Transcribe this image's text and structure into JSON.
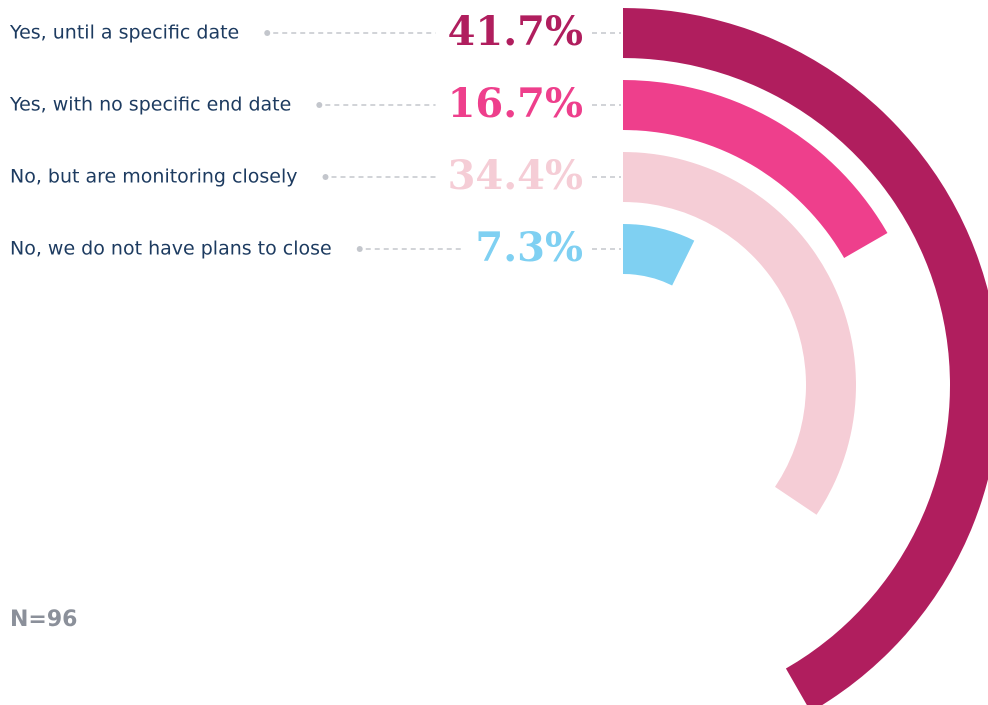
{
  "chart_data": {
    "type": "radial_bar",
    "categories": [
      "Yes, until a specific date",
      "Yes, with no specific end date",
      "No, but are monitoring closely",
      "No, we do not have plans to close"
    ],
    "values": [
      41.7,
      16.7,
      34.4,
      7.3
    ],
    "value_labels": [
      "41.7%",
      "16.7%",
      "34.4%",
      "7.3%"
    ],
    "colors": [
      "#b01e5e",
      "#ee3f8c",
      "#f5cdd6",
      "#7fd0f2"
    ],
    "annotation": "N=96"
  }
}
